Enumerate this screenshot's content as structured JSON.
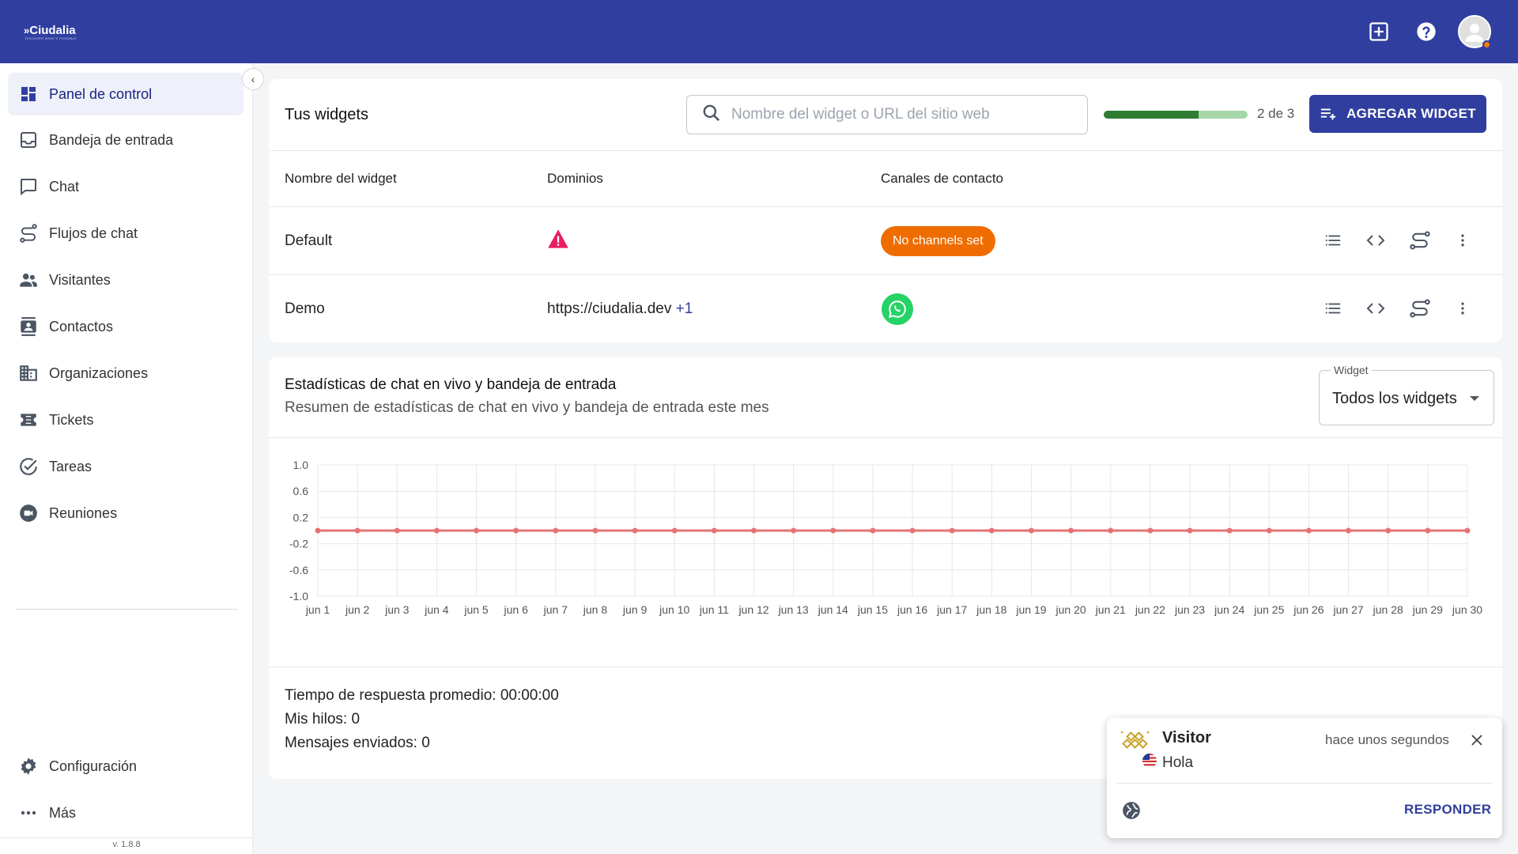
{
  "header": {
    "logo_mark": "»",
    "logo_text": "Ciudalia",
    "logo_tagline": "DISCOVER WHAT'S POSSIBLE",
    "icons": [
      "add-box-icon",
      "help-icon",
      "account-icon"
    ]
  },
  "sidebar": {
    "items": [
      {
        "label": "Panel de control",
        "icon": "dashboard-icon",
        "active": true
      },
      {
        "label": "Bandeja de entrada",
        "icon": "inbox-icon"
      },
      {
        "label": "Chat",
        "icon": "chat-icon"
      },
      {
        "label": "Flujos de chat",
        "icon": "route-icon"
      },
      {
        "label": "Visitantes",
        "icon": "people-icon"
      },
      {
        "label": "Contactos",
        "icon": "contacts-icon"
      },
      {
        "label": "Organizaciones",
        "icon": "building-icon"
      },
      {
        "label": "Tickets",
        "icon": "ticket-icon"
      },
      {
        "label": "Tareas",
        "icon": "check-circle-icon"
      },
      {
        "label": "Reuniones",
        "icon": "video-icon"
      }
    ],
    "bottom": [
      {
        "label": "Configuración",
        "icon": "gear-icon"
      },
      {
        "label": "Más",
        "icon": "more-horiz-icon"
      }
    ],
    "version": "v. 1.8.8",
    "collapse_glyph": "‹"
  },
  "widgets": {
    "title": "Tus widgets",
    "search_placeholder": "Nombre del widget o URL del sitio web",
    "usage_fraction": 0.66,
    "count_label": "2 de 3",
    "add_button": "AGREGAR WIDGET",
    "columns": [
      "Nombre del widget",
      "Dominios",
      "Canales de contacto"
    ],
    "rows": [
      {
        "name": "Default",
        "domain": "",
        "domain_icon": "warning-icon",
        "channels": "No channels set"
      },
      {
        "name": "Demo",
        "domain": "https://ciudalia.dev",
        "domain_extra": "+1",
        "channels_icon": "whatsapp-icon"
      }
    ],
    "row_actions": [
      "list-icon",
      "code-icon",
      "route-icon",
      "more-vert-icon"
    ],
    "colors": {
      "accent": "#303f9f",
      "badge": "#ef6c00",
      "progress_fill": "#2e7d32",
      "progress_track": "#a5d6a7"
    }
  },
  "stats": {
    "title": "Estadísticas de chat en vivo y bandeja de entrada",
    "subtitle": "Resumen de estadísticas de chat en vivo y bandeja de entrada este mes",
    "select_label": "Widget",
    "select_value": "Todos los widgets",
    "lines": [
      "Tiempo de respuesta promedio: 00:00:00",
      "Mis hilos: 0",
      "Mensajes enviados: 0"
    ]
  },
  "chart_data": {
    "type": "line",
    "categories": [
      "jun 1",
      "jun 2",
      "jun 3",
      "jun 4",
      "jun 5",
      "jun 6",
      "jun 7",
      "jun 8",
      "jun 9",
      "jun 10",
      "jun 11",
      "jun 12",
      "jun 13",
      "jun 14",
      "jun 15",
      "jun 16",
      "jun 17",
      "jun 18",
      "jun 19",
      "jun 20",
      "jun 21",
      "jun 22",
      "jun 23",
      "jun 24",
      "jun 25",
      "jun 26",
      "jun 27",
      "jun 28",
      "jun 29",
      "jun 30"
    ],
    "series": [
      {
        "values": [
          0,
          0,
          0,
          0,
          0,
          0,
          0,
          0,
          0,
          0,
          0,
          0,
          0,
          0,
          0,
          0,
          0,
          0,
          0,
          0,
          0,
          0,
          0,
          0,
          0,
          0,
          0,
          0,
          0,
          0
        ],
        "color": "#e57373"
      }
    ],
    "y_ticks": [
      "1.0",
      "0.6",
      "0.2",
      "-0.2",
      "-0.6",
      "-1.0"
    ],
    "ylim": [
      -1,
      1
    ],
    "grid": true,
    "title": "",
    "xlabel": "",
    "ylabel": ""
  },
  "toast": {
    "name": "Visitor",
    "message": "Hola",
    "time": "hace unos segundos",
    "reply": "RESPONDER",
    "icons": [
      "visitor-avatar-icon",
      "us-flag-icon",
      "close-icon",
      "globe-icon"
    ]
  }
}
